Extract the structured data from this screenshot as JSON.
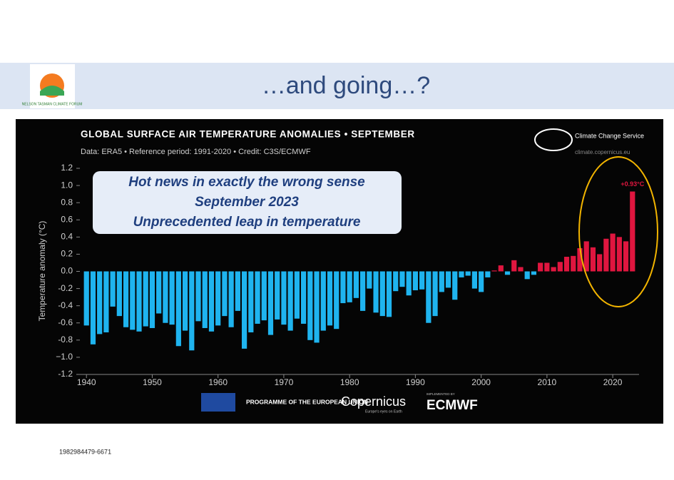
{
  "slide_title": "…and going…?",
  "logo_text": "NELSON TASMAN CLIMATE FORUM",
  "footer_id": "1982984479-6671",
  "note": [
    "Hot news in exactly the wrong sense",
    "September 2023",
    "Unprecedented leap in temperature"
  ],
  "credits": {
    "c3s": "Climate Change Service",
    "url": "climate.copernicus.eu",
    "eu": "PROGRAMME OF THE EUROPEAN UNION",
    "copernicus": "Copernicus",
    "copernicus_tag": "Europe's eyes on Earth",
    "implemented": "IMPLEMENTED BY",
    "ecmwf": "ECMWF"
  },
  "chart_data": {
    "type": "bar",
    "title": "GLOBAL SURFACE AIR TEMPERATURE ANOMALIES • SEPTEMBER",
    "subtitle": "Data: ERA5 • Reference period: 1991-2020 • Credit: C3S/ECMWF",
    "y_label": "Temperature anomaly (°C)",
    "x": [
      1940,
      1941,
      1942,
      1943,
      1944,
      1945,
      1946,
      1947,
      1948,
      1949,
      1950,
      1951,
      1952,
      1953,
      1954,
      1955,
      1956,
      1957,
      1958,
      1959,
      1960,
      1961,
      1962,
      1963,
      1964,
      1965,
      1966,
      1967,
      1968,
      1969,
      1970,
      1971,
      1972,
      1973,
      1974,
      1975,
      1976,
      1977,
      1978,
      1979,
      1980,
      1981,
      1982,
      1983,
      1984,
      1985,
      1986,
      1987,
      1988,
      1989,
      1990,
      1991,
      1992,
      1993,
      1994,
      1995,
      1996,
      1997,
      1998,
      1999,
      2000,
      2001,
      2002,
      2003,
      2004,
      2005,
      2006,
      2007,
      2008,
      2009,
      2010,
      2011,
      2012,
      2013,
      2014,
      2015,
      2016,
      2017,
      2018,
      2019,
      2020,
      2021,
      2022,
      2023
    ],
    "values": [
      -0.63,
      -0.85,
      -0.73,
      -0.71,
      -0.41,
      -0.52,
      -0.65,
      -0.68,
      -0.7,
      -0.64,
      -0.66,
      -0.49,
      -0.6,
      -0.62,
      -0.87,
      -0.69,
      -0.92,
      -0.58,
      -0.66,
      -0.7,
      -0.63,
      -0.52,
      -0.65,
      -0.46,
      -0.9,
      -0.71,
      -0.61,
      -0.57,
      -0.74,
      -0.56,
      -0.62,
      -0.69,
      -0.55,
      -0.61,
      -0.8,
      -0.83,
      -0.69,
      -0.63,
      -0.67,
      -0.37,
      -0.36,
      -0.31,
      -0.46,
      -0.2,
      -0.48,
      -0.52,
      -0.53,
      -0.23,
      -0.18,
      -0.28,
      -0.22,
      -0.21,
      -0.6,
      -0.52,
      -0.24,
      -0.19,
      -0.33,
      -0.07,
      -0.05,
      -0.2,
      -0.24,
      -0.07,
      0.01,
      0.07,
      -0.04,
      0.13,
      0.05,
      -0.09,
      -0.04,
      0.1,
      0.1,
      0.05,
      0.11,
      0.17,
      0.18,
      0.27,
      0.35,
      0.28,
      0.2,
      0.38,
      0.44,
      0.4,
      0.35,
      0.93
    ],
    "value_labels": [
      null,
      null,
      null,
      null,
      null,
      null,
      null,
      null,
      null,
      null,
      null,
      null,
      null,
      null,
      null,
      null,
      null,
      null,
      null,
      null,
      null,
      null,
      null,
      null,
      null,
      null,
      null,
      null,
      null,
      null,
      null,
      null,
      null,
      null,
      null,
      null,
      null,
      null,
      null,
      null,
      null,
      null,
      null,
      null,
      null,
      null,
      null,
      null,
      null,
      null,
      null,
      null,
      null,
      null,
      null,
      null,
      null,
      null,
      null,
      null,
      null,
      null,
      null,
      null,
      null,
      null,
      null,
      null,
      null,
      null,
      null,
      null,
      null,
      null,
      null,
      null,
      null,
      null,
      null,
      null,
      null,
      null,
      null,
      "+0.93°C"
    ],
    "color_negative": "#1fb4ef",
    "color_positive": "#e0163f",
    "xlim": [
      1939,
      2024
    ],
    "xticks": [
      1940,
      1950,
      1960,
      1970,
      1980,
      1990,
      2000,
      2010,
      2020
    ],
    "ylim": [
      -1.2,
      1.2
    ],
    "yticks": [
      1.2,
      {
        "value": 1.0,
        "label": "1.0"
      },
      0.8,
      0.6,
      0.4,
      0.2,
      {
        "value": 0,
        "label": "0.0"
      },
      -0.2,
      -0.4,
      -0.6,
      -0.8,
      {
        "value": -1.0,
        "label": "−1.0"
      },
      -1.2
    ]
  }
}
